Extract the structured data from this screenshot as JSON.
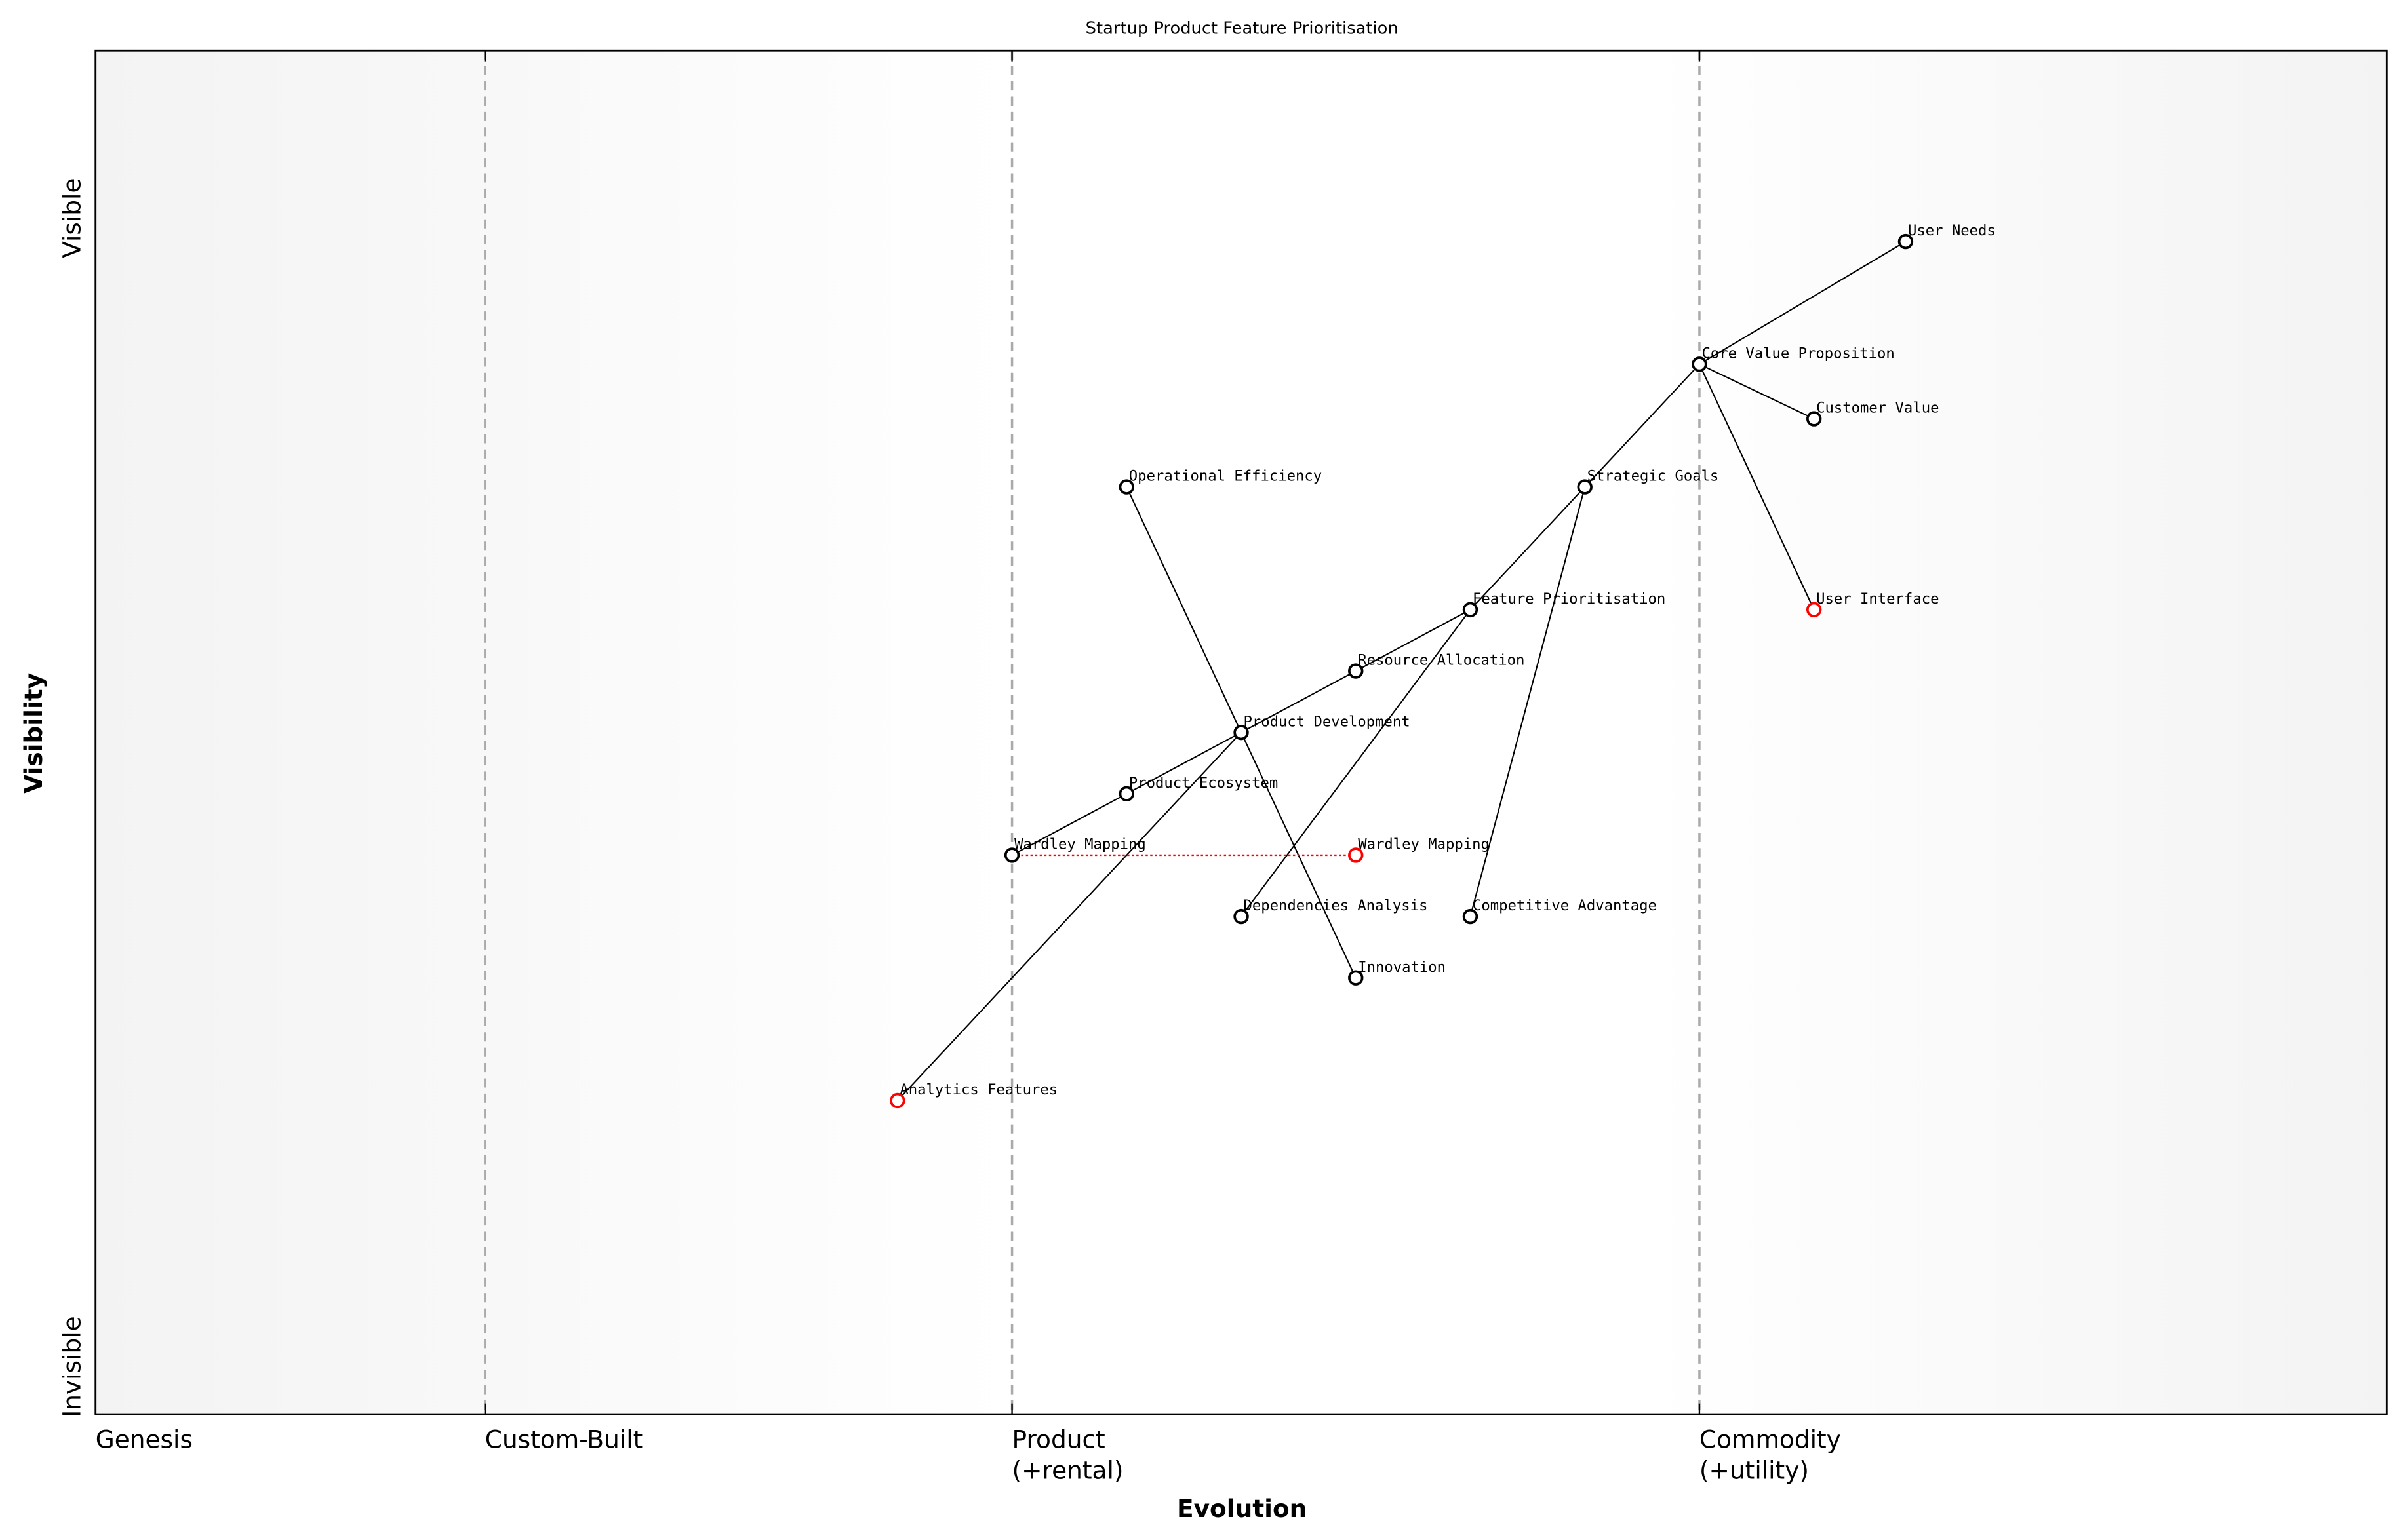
{
  "title": "Startup Product Feature Prioritisation",
  "x_axis": {
    "label": "Evolution",
    "stages": [
      {
        "name": "Genesis",
        "line2": "",
        "at": 0.0
      },
      {
        "name": "Custom-Built",
        "line2": "",
        "at": 0.17
      },
      {
        "name": "Product",
        "line2": "(+rental)",
        "at": 0.4
      },
      {
        "name": "Commodity",
        "line2": "(+utility)",
        "at": 0.7
      }
    ]
  },
  "y_axis": {
    "label": "Visibility",
    "top": "Visible",
    "bottom": "Invisible"
  },
  "colors": {
    "node": "#000000",
    "evolved_node": "#ff0000",
    "evolve_link": "#ff0000",
    "stage_line": "#aaaaaa"
  },
  "components": [
    {
      "id": "un",
      "name": "User Needs",
      "evolution": 0.79,
      "visibility": 0.86
    },
    {
      "id": "cvp",
      "name": "Core Value Proposition",
      "evolution": 0.7,
      "visibility": 0.77
    },
    {
      "id": "cv",
      "name": "Customer Value",
      "evolution": 0.75,
      "visibility": 0.73
    },
    {
      "id": "sg",
      "name": "Strategic Goals",
      "evolution": 0.65,
      "visibility": 0.68
    },
    {
      "id": "oe",
      "name": "Operational Efficiency",
      "evolution": 0.45,
      "visibility": 0.68
    },
    {
      "id": "fp",
      "name": "Feature Prioritisation",
      "evolution": 0.6,
      "visibility": 0.59
    },
    {
      "id": "ui",
      "name": "User Interface",
      "evolution": 0.75,
      "visibility": 0.59,
      "evolved": true
    },
    {
      "id": "ra",
      "name": "Resource Allocation",
      "evolution": 0.55,
      "visibility": 0.545
    },
    {
      "id": "pd",
      "name": "Product Development",
      "evolution": 0.5,
      "visibility": 0.5
    },
    {
      "id": "pe",
      "name": "Product Ecosystem",
      "evolution": 0.45,
      "visibility": 0.455
    },
    {
      "id": "wm",
      "name": "Wardley Mapping",
      "evolution": 0.4,
      "visibility": 0.41
    },
    {
      "id": "wm2",
      "name": "Wardley Mapping",
      "evolution": 0.55,
      "visibility": 0.41,
      "evolved": true
    },
    {
      "id": "da",
      "name": "Dependencies Analysis",
      "evolution": 0.5,
      "visibility": 0.365
    },
    {
      "id": "ca",
      "name": "Competitive Advantage",
      "evolution": 0.6,
      "visibility": 0.365
    },
    {
      "id": "in",
      "name": "Innovation",
      "evolution": 0.55,
      "visibility": 0.32
    },
    {
      "id": "af",
      "name": "Analytics Features",
      "evolution": 0.35,
      "visibility": 0.23,
      "evolved": true
    }
  ],
  "links": [
    [
      "un",
      "cvp"
    ],
    [
      "cvp",
      "cv"
    ],
    [
      "cvp",
      "ui"
    ],
    [
      "cvp",
      "sg"
    ],
    [
      "sg",
      "fp"
    ],
    [
      "sg",
      "ca"
    ],
    [
      "fp",
      "ra"
    ],
    [
      "fp",
      "da"
    ],
    [
      "ra",
      "pd"
    ],
    [
      "pd",
      "pe"
    ],
    [
      "pe",
      "wm"
    ],
    [
      "oe",
      "pd"
    ],
    [
      "pd",
      "in"
    ],
    [
      "pd",
      "af"
    ]
  ],
  "evolve_links": [
    [
      "wm",
      "wm2"
    ]
  ]
}
